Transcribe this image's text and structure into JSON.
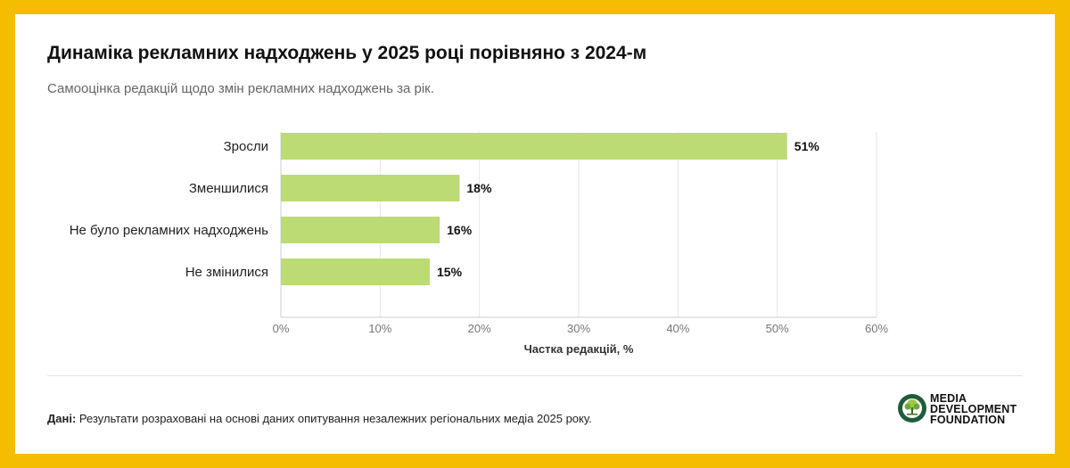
{
  "header": {
    "title": "Динаміка рекламних надходжень у 2025 році порівняно з 2024-м",
    "subtitle": "Самооцінка редакцій щодо змін рекламних надходжень за рік."
  },
  "chart_data": {
    "type": "bar",
    "orientation": "horizontal",
    "categories": [
      "Зросли",
      "Зменшилися",
      "Не було рекламних надходжень",
      "Не змінилися"
    ],
    "values": [
      51,
      18,
      16,
      15
    ],
    "value_labels": [
      "51%",
      "18%",
      "16%",
      "15%"
    ],
    "xlabel": "Частка редакцій, %",
    "xlim": [
      0,
      60
    ],
    "xticks": [
      0,
      10,
      20,
      30,
      40,
      50,
      60
    ],
    "xtick_labels": [
      "0%",
      "10%",
      "20%",
      "30%",
      "40%",
      "50%",
      "60%"
    ],
    "grid": true,
    "bar_color": "#bcdb75"
  },
  "footer": {
    "source_label": "Дані:",
    "source_text": "Результати розраховані на основі даних опитування незалежних регіональних медіа 2025 року."
  },
  "logo": {
    "line1": "MEDIA",
    "line2": "DEVELOPMENT",
    "line3": "FOUNDATION",
    "icon": "tree-icon",
    "color": "#1f5c3a"
  },
  "colors": {
    "frame": "#f5bd02",
    "card": "#ffffff"
  }
}
